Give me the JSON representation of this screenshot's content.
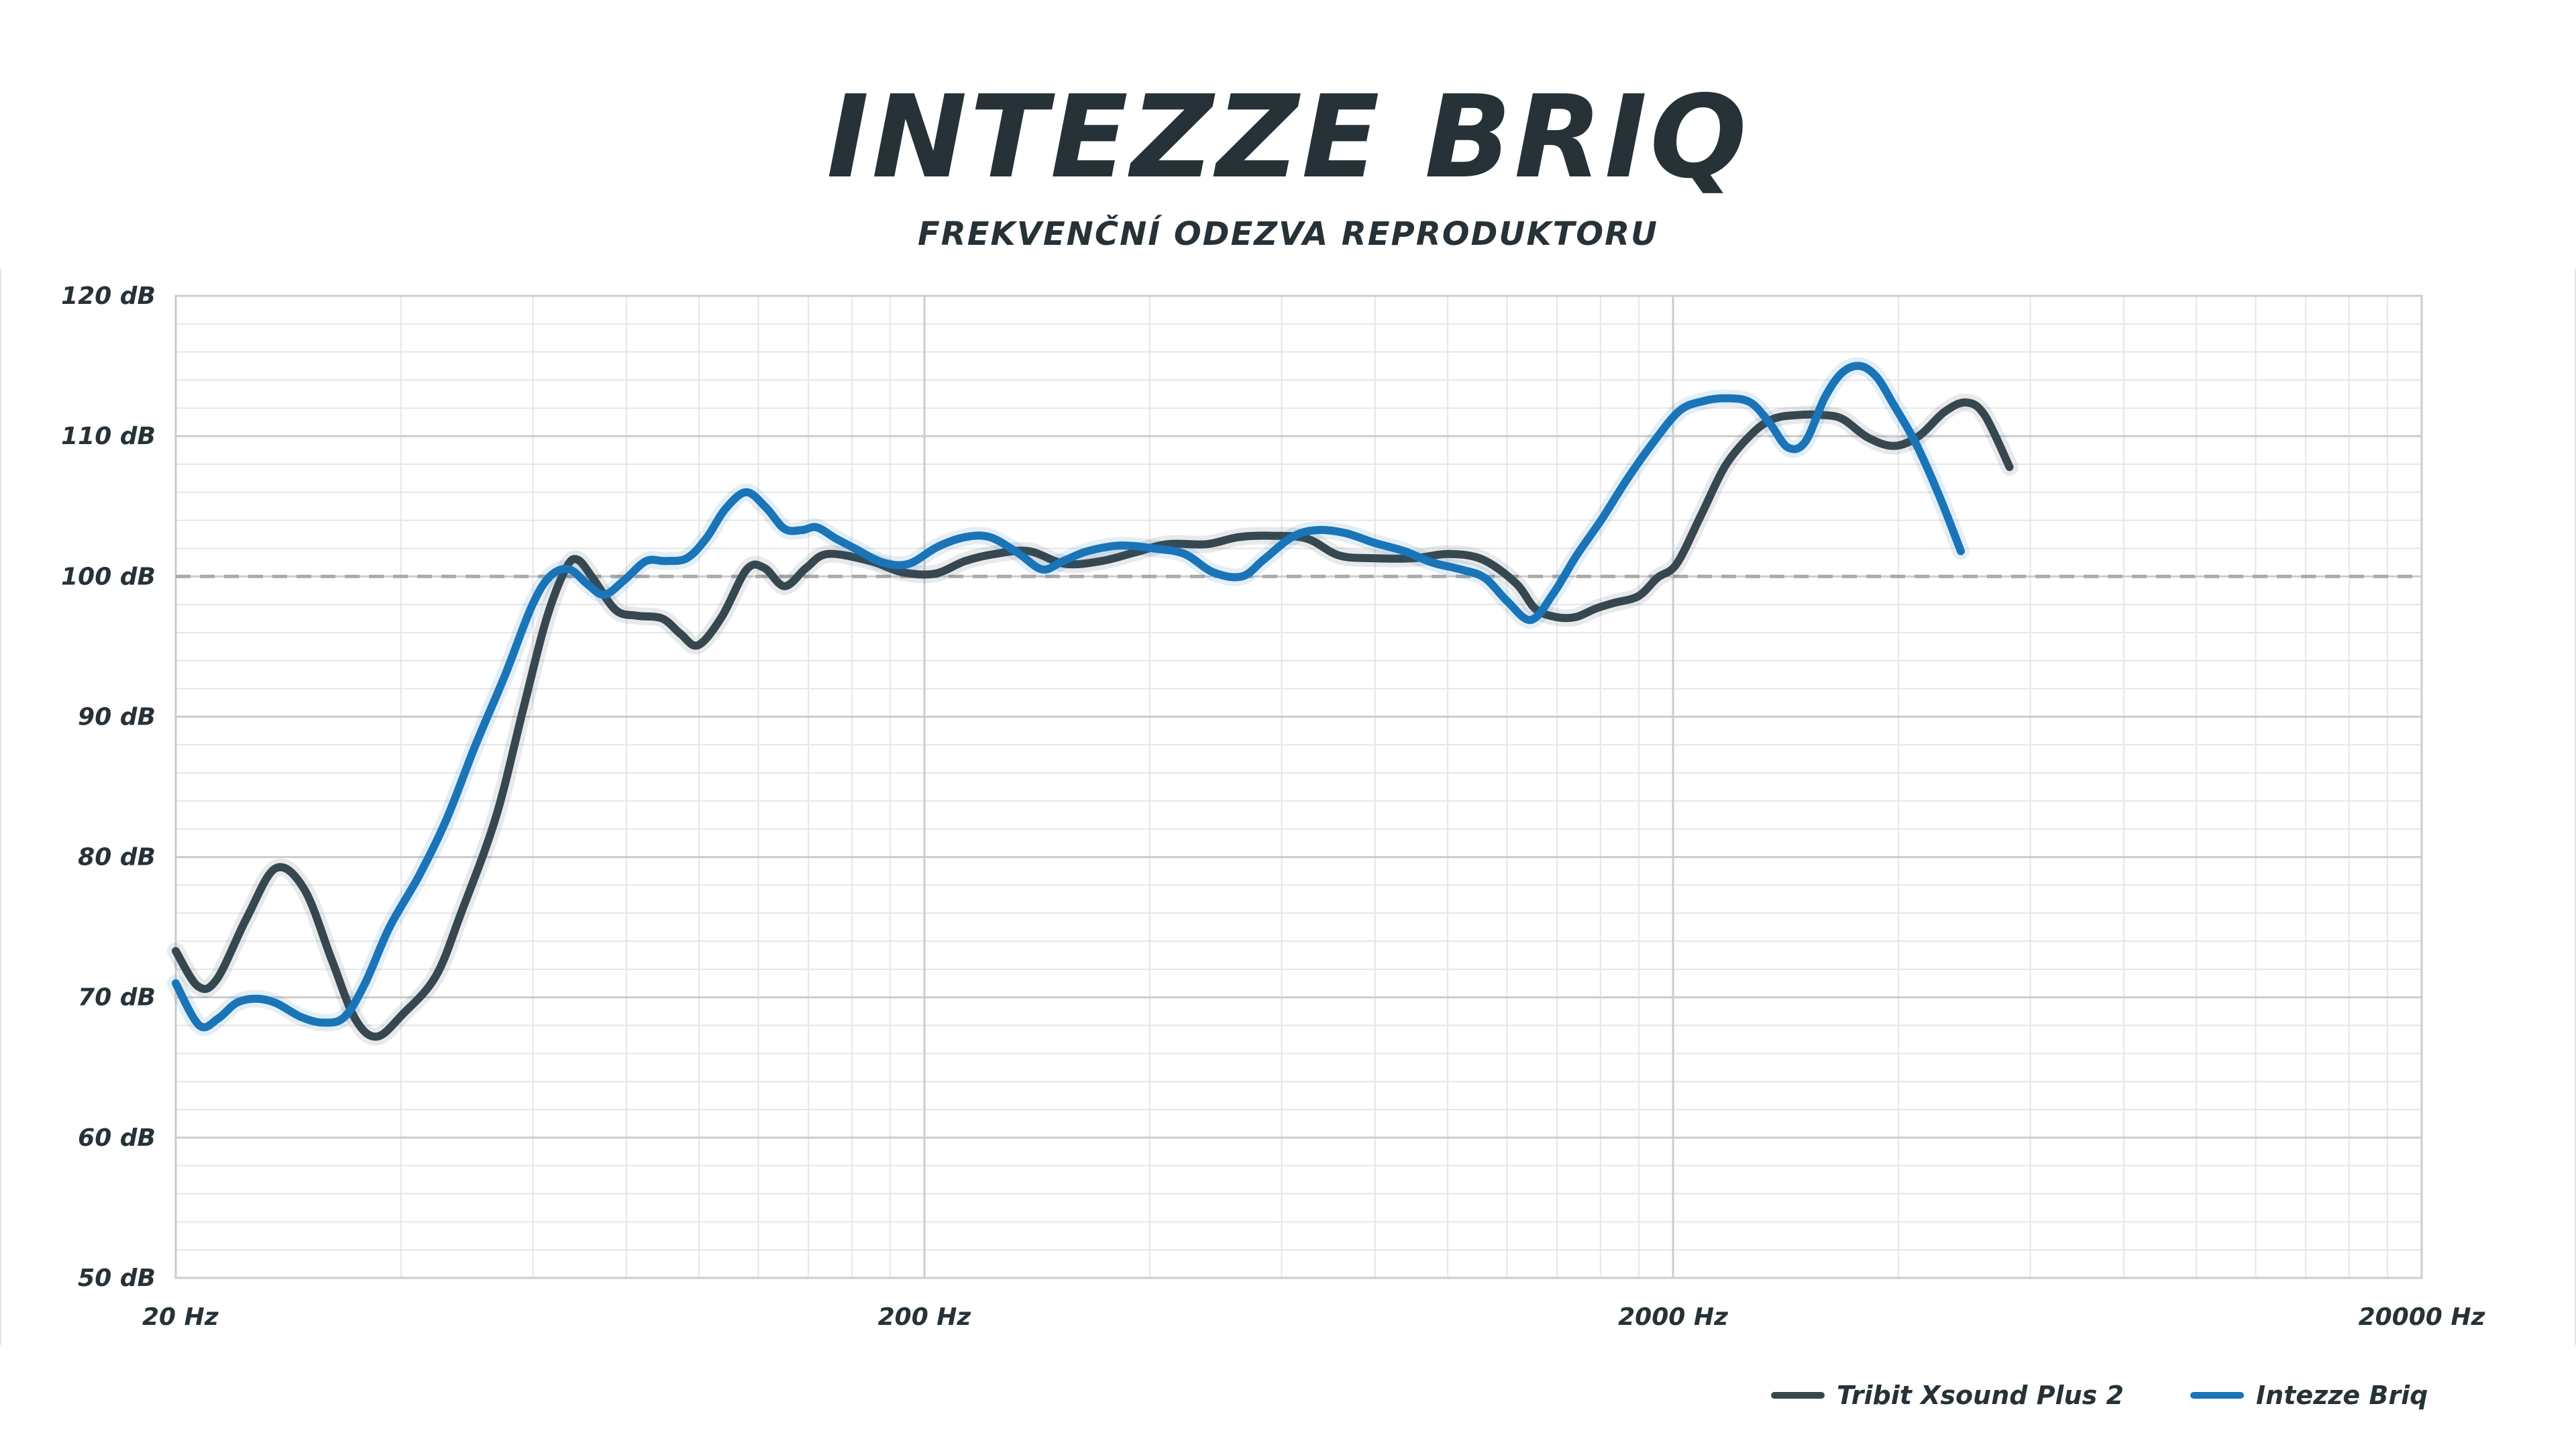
{
  "header": {
    "title": "INTEZZE BRIQ",
    "subtitle": "FREKVENČNÍ ODEZVA REPRODUKTORU"
  },
  "legend": {
    "series_a": "Tribit Xsound Plus 2",
    "series_b": "Intezze Briq"
  },
  "colors": {
    "series_a": "#37474f",
    "series_b": "#1a74b8",
    "reference_line": "#a9a9a9",
    "grid_major": "#cccccc",
    "grid_minor": "#e6e6e6"
  },
  "chart_data": {
    "type": "line",
    "x_scale": "log",
    "xlim": [
      20,
      20000
    ],
    "ylim": [
      50,
      120
    ],
    "x_ticks": [
      20,
      200,
      2000,
      20000
    ],
    "x_tick_labels": [
      "20 Hz",
      "200 Hz",
      "2000 Hz",
      "20000 Hz"
    ],
    "y_ticks": [
      50,
      60,
      70,
      80,
      90,
      100,
      110,
      120
    ],
    "y_tick_labels": [
      "50 dB",
      "60 dB",
      "70 dB",
      "80 dB",
      "90 dB",
      "100 dB",
      "110 dB",
      "120 dB"
    ],
    "grid": true,
    "reference_line": 100,
    "legend_position": "bottom-right",
    "series": [
      {
        "name": "Tribit Xsound Plus 2",
        "points": [
          [
            20,
            73.3
          ],
          [
            21.4,
            70.8
          ],
          [
            22.7,
            71.3
          ],
          [
            24.9,
            75.7
          ],
          [
            27.2,
            79.2
          ],
          [
            29.7,
            77.7
          ],
          [
            32.3,
            72.7
          ],
          [
            34.7,
            68.5
          ],
          [
            37.1,
            67.2
          ],
          [
            40.2,
            68.8
          ],
          [
            44.5,
            71.5
          ],
          [
            48.1,
            76.0
          ],
          [
            53.5,
            82.8
          ],
          [
            58.2,
            90.5
          ],
          [
            62.4,
            96.8
          ],
          [
            66.3,
            100.5
          ],
          [
            68.8,
            101.2
          ],
          [
            72.3,
            99.8
          ],
          [
            77.4,
            97.6
          ],
          [
            82.6,
            97.2
          ],
          [
            89.3,
            97.0
          ],
          [
            94.5,
            95.9
          ],
          [
            99.7,
            95.1
          ],
          [
            107.2,
            97.1
          ],
          [
            115.8,
            100.5
          ],
          [
            122.3,
            100.6
          ],
          [
            130.1,
            99.3
          ],
          [
            139.0,
            100.6
          ],
          [
            148.5,
            101.6
          ],
          [
            169.3,
            101.1
          ],
          [
            186.9,
            100.3
          ],
          [
            206.7,
            100.2
          ],
          [
            226.7,
            101.1
          ],
          [
            248.4,
            101.6
          ],
          [
            275.8,
            101.8
          ],
          [
            308.1,
            100.9
          ],
          [
            344.8,
            101.1
          ],
          [
            381.5,
            101.7
          ],
          [
            422.6,
            102.3
          ],
          [
            476.7,
            102.3
          ],
          [
            525.6,
            102.8
          ],
          [
            579.5,
            102.9
          ],
          [
            648.0,
            102.7
          ],
          [
            715.4,
            101.5
          ],
          [
            796.2,
            101.3
          ],
          [
            900.9,
            101.3
          ],
          [
            1004.0,
            101.6
          ],
          [
            1114.3,
            101.2
          ],
          [
            1234.0,
            99.5
          ],
          [
            1309.1,
            97.7
          ],
          [
            1396.4,
            97.1
          ],
          [
            1481.8,
            97.1
          ],
          [
            1575.4,
            97.7
          ],
          [
            1664.2,
            98.1
          ],
          [
            1798.2,
            98.6
          ],
          [
            1905.7,
            99.9
          ],
          [
            2022.5,
            100.9
          ],
          [
            2181.3,
            104.4
          ],
          [
            2349.9,
            107.9
          ],
          [
            2541.2,
            110.1
          ],
          [
            2714.3,
            111.2
          ],
          [
            2922.8,
            111.5
          ],
          [
            3183.3,
            111.5
          ],
          [
            3374.2,
            111.2
          ],
          [
            3641.2,
            109.9
          ],
          [
            3946.3,
            109.3
          ],
          [
            4258.9,
            110.0
          ],
          [
            4601.5,
            111.7
          ],
          [
            4920.9,
            112.4
          ],
          [
            5213.6,
            111.5
          ],
          [
            5629.8,
            107.8
          ]
        ]
      },
      {
        "name": "Intezze Briq",
        "points": [
          [
            20,
            71.0
          ],
          [
            21.5,
            68.0
          ],
          [
            22.8,
            68.5
          ],
          [
            24.1,
            69.6
          ],
          [
            25.6,
            69.9
          ],
          [
            27.2,
            69.6
          ],
          [
            29.4,
            68.6
          ],
          [
            31.5,
            68.2
          ],
          [
            33.6,
            68.6
          ],
          [
            35.8,
            71.0
          ],
          [
            38.6,
            75.0
          ],
          [
            42.3,
            78.7
          ],
          [
            46.0,
            82.7
          ],
          [
            50.3,
            88.0
          ],
          [
            55.1,
            93.0
          ],
          [
            59.7,
            97.8
          ],
          [
            63.2,
            100.0
          ],
          [
            67.1,
            100.5
          ],
          [
            71.1,
            99.4
          ],
          [
            74.8,
            98.7
          ],
          [
            79.7,
            99.8
          ],
          [
            85.0,
            101.1
          ],
          [
            90.2,
            101.1
          ],
          [
            96.3,
            101.3
          ],
          [
            102.2,
            102.7
          ],
          [
            108.4,
            104.8
          ],
          [
            115.6,
            106.0
          ],
          [
            122.9,
            104.9
          ],
          [
            130.0,
            103.4
          ],
          [
            137.1,
            103.3
          ],
          [
            143.6,
            103.5
          ],
          [
            152.3,
            102.7
          ],
          [
            161.4,
            102.0
          ],
          [
            175.8,
            101.0
          ],
          [
            190.6,
            100.9
          ],
          [
            208.1,
            102.1
          ],
          [
            226.6,
            102.8
          ],
          [
            244.7,
            102.8
          ],
          [
            266.2,
            101.7
          ],
          [
            287.4,
            100.5
          ],
          [
            306.5,
            101.1
          ],
          [
            330.4,
            101.8
          ],
          [
            365.0,
            102.2
          ],
          [
            404.6,
            102.0
          ],
          [
            445.2,
            101.6
          ],
          [
            485.9,
            100.3
          ],
          [
            531.3,
            100.0
          ],
          [
            567.9,
            101.2
          ],
          [
            619.4,
            102.8
          ],
          [
            667.0,
            103.3
          ],
          [
            728.8,
            103.1
          ],
          [
            797.9,
            102.4
          ],
          [
            875.3,
            101.8
          ],
          [
            952.6,
            101.0
          ],
          [
            1040.5,
            100.5
          ],
          [
            1120.4,
            99.9
          ],
          [
            1202.7,
            98.2
          ],
          [
            1292.2,
            96.9
          ],
          [
            1384.5,
            98.8
          ],
          [
            1487.0,
            101.5
          ],
          [
            1607.1,
            104.1
          ],
          [
            1735.1,
            106.9
          ],
          [
            1878.6,
            109.5
          ],
          [
            2039.5,
            111.8
          ],
          [
            2195.3,
            112.5
          ],
          [
            2366.8,
            112.7
          ],
          [
            2537.0,
            112.4
          ],
          [
            2686.5,
            111.0
          ],
          [
            2846.4,
            109.2
          ],
          [
            3004.5,
            109.6
          ],
          [
            3185.7,
            112.7
          ],
          [
            3360.6,
            114.5
          ],
          [
            3553.6,
            115.0
          ],
          [
            3743.0,
            114.2
          ],
          [
            3945.5,
            112.2
          ],
          [
            4218.5,
            109.5
          ],
          [
            4530.8,
            105.8
          ],
          [
            4846.6,
            101.8
          ]
        ]
      }
    ]
  }
}
